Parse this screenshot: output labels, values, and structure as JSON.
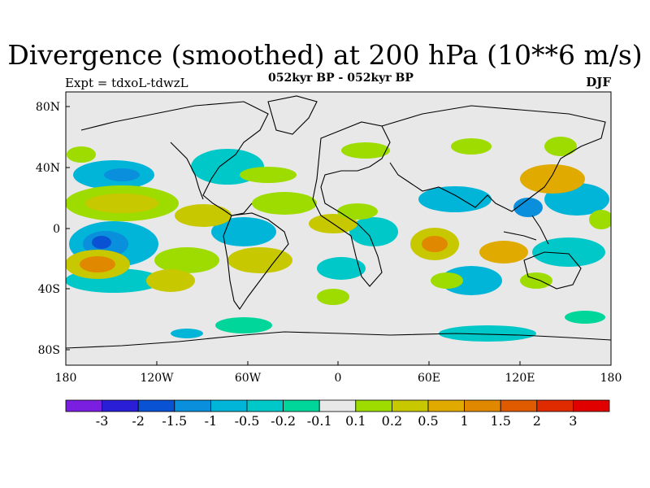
{
  "header": {
    "title": "Divergence (smoothed) at 200 hPa (10**6 m/s)",
    "experiment": "Expt = tdxoL-tdwzL",
    "period": "052kyr BP - 052kyr BP",
    "season": "DJF"
  },
  "map": {
    "lat_ticks": [
      "80N",
      "40N",
      "0",
      "40S",
      "80S"
    ],
    "lon_ticks": [
      "180",
      "120W",
      "60W",
      "0",
      "60E",
      "120E",
      "180"
    ],
    "background_color": "#e8e8e8"
  },
  "colorbar": {
    "labels": [
      "-3",
      "-2",
      "-1.5",
      "-1",
      "-0.5",
      "-0.2",
      "-0.1",
      "0.1",
      "0.2",
      "0.5",
      "1",
      "1.5",
      "2",
      "3"
    ],
    "colors": [
      "#7a1fe0",
      "#2a1ed6",
      "#0a52d4",
      "#0a8fdc",
      "#00b5d8",
      "#00c8c8",
      "#00d69a",
      "#e8e8e8",
      "#9edc00",
      "#c8c800",
      "#e0aa00",
      "#e08800",
      "#e05a00",
      "#e02a00",
      "#e00000"
    ]
  }
}
